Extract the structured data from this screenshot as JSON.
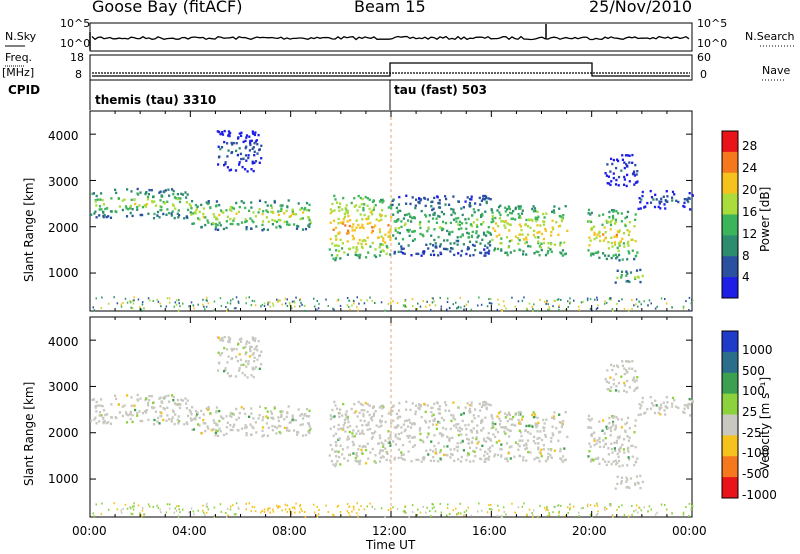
{
  "header": {
    "station": "Goose Bay (fitACF)",
    "beam": "Beam 15",
    "date": "25/Nov/2010"
  },
  "top_panels": {
    "nsky_label": "N.Sky",
    "nsky_ticks": [
      "10^5",
      "10^0"
    ],
    "nsearch_label": "N.Search",
    "nsearch_ticks": [
      "10^5",
      "10^0"
    ],
    "freq_label": "Freq.",
    "freq_unit": "[MHz]",
    "freq_ticks": [
      "18",
      "8"
    ],
    "nave_label": "Nave",
    "nave_ticks": [
      "60",
      "0"
    ],
    "cpid_label": "CPID",
    "cpid_segments": [
      {
        "name": "themis (tau) 3310",
        "start_hour": 0
      },
      {
        "name": "tau (fast) 503",
        "start_hour": 12
      }
    ]
  },
  "chart_data": [
    {
      "type": "heatmap",
      "title": "Power",
      "xlabel": "",
      "ylabel": "Slant Range [km]",
      "xlim": [
        0,
        24
      ],
      "ylim": [
        180,
        4500
      ],
      "y_ticks": [
        "4000",
        "3000",
        "2000",
        "1000"
      ],
      "colorbar_label": "Power [dB]",
      "colorbar_ticks": [
        "28",
        "24",
        "20",
        "16",
        "12",
        "8",
        "4"
      ],
      "colorbar_colors": [
        "#e8141a",
        "#f5781e",
        "#f5c21e",
        "#aadc3c",
        "#3cb45a",
        "#2e8c6e",
        "#2a50a0",
        "#1e1ee6"
      ],
      "bands": [
        {
          "t0": 0.0,
          "t1": 4.0,
          "r0": 2200,
          "r1": 2850,
          "level": 18
        },
        {
          "t0": 4.0,
          "t1": 8.8,
          "r0": 1950,
          "r1": 2600,
          "level": 20
        },
        {
          "t0": 9.5,
          "t1": 12.0,
          "r0": 1300,
          "r1": 2700,
          "level": 24
        },
        {
          "t0": 12.0,
          "t1": 16.0,
          "r0": 1400,
          "r1": 2700,
          "level": 16
        },
        {
          "t0": 16.0,
          "t1": 19.0,
          "r0": 1400,
          "r1": 2500,
          "level": 22
        },
        {
          "t0": 19.8,
          "t1": 21.8,
          "r0": 1300,
          "r1": 2400,
          "level": 22
        },
        {
          "t0": 20.8,
          "t1": 22.0,
          "r0": 800,
          "r1": 1100,
          "level": 18
        },
        {
          "t0": 21.8,
          "t1": 24.0,
          "r0": 2400,
          "r1": 2800,
          "level": 8
        },
        {
          "t0": 5.0,
          "t1": 6.8,
          "r0": 3200,
          "r1": 4100,
          "level": 8
        },
        {
          "t0": 20.5,
          "t1": 21.8,
          "r0": 2900,
          "r1": 3600,
          "level": 8
        }
      ]
    },
    {
      "type": "heatmap",
      "title": "Velocity",
      "xlabel": "Time UT",
      "ylabel": "Slant Range [km]",
      "xlim": [
        0,
        24
      ],
      "ylim": [
        180,
        4500
      ],
      "x_ticks": [
        "00:00",
        "04:00",
        "08:00",
        "12:00",
        "16:00",
        "20:00",
        "00:00"
      ],
      "y_ticks": [
        "4000",
        "3000",
        "2000",
        "1000"
      ],
      "colorbar_label": "Velocity [m s⁻¹]",
      "colorbar_ticks": [
        "1000",
        "500",
        "100",
        "25",
        "-25",
        "-100",
        "-500",
        "-1000"
      ],
      "colorbar_colors": [
        "#1e3cc8",
        "#2a6e8c",
        "#3ca050",
        "#8cd23c",
        "#c8c8c0",
        "#f5c21e",
        "#f5781e",
        "#e8141a"
      ]
    }
  ]
}
